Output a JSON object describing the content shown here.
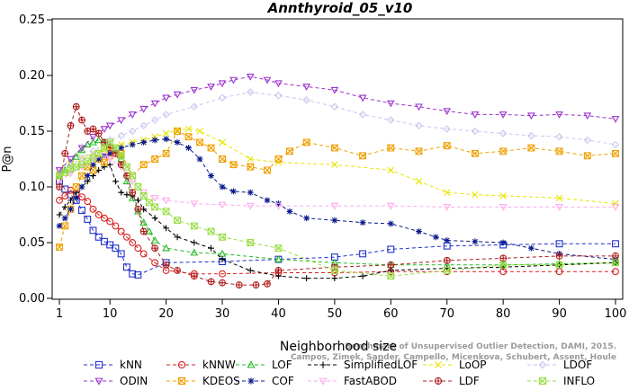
{
  "chart_data": {
    "type": "line",
    "title": "Annthyroid_05_v10",
    "xlabel": "Neighborhood size",
    "ylabel": "P@n",
    "xlim": [
      1,
      100
    ],
    "ylim": [
      0,
      0.25
    ],
    "xticks": [
      1,
      10,
      20,
      30,
      40,
      50,
      60,
      70,
      80,
      90,
      100
    ],
    "yticks": [
      0.0,
      0.05,
      0.1,
      0.15,
      0.2,
      0.25
    ],
    "grid": false,
    "legend_position": "bottom",
    "watermark": [
      "Benchmark of Unsupervised Outlier Detection, DAMI, 2015.",
      "Campos, Zimek, Sander, Campello, Micenkova, Schubert, Assent, Houle"
    ],
    "series": [
      {
        "name": "kNN",
        "color": "#1f2fcc",
        "marker": "square",
        "x": [
          1,
          2,
          3,
          4,
          5,
          6,
          7,
          8,
          9,
          10,
          11,
          12,
          13,
          14,
          15,
          20,
          30,
          40,
          50,
          55,
          60,
          70,
          80,
          90,
          100
        ],
        "y": [
          0.105,
          0.098,
          0.093,
          0.088,
          0.079,
          0.071,
          0.061,
          0.055,
          0.051,
          0.048,
          0.045,
          0.04,
          0.028,
          0.022,
          0.021,
          0.032,
          0.033,
          0.035,
          0.037,
          0.04,
          0.044,
          0.047,
          0.048,
          0.049,
          0.049
        ]
      },
      {
        "name": "kNNW",
        "color": "#d82020",
        "marker": "circle",
        "x": [
          1,
          2,
          3,
          4,
          5,
          6,
          7,
          8,
          9,
          10,
          11,
          12,
          13,
          14,
          15,
          16,
          18,
          20,
          25,
          30,
          40,
          50,
          60,
          70,
          80,
          90,
          100
        ],
        "y": [
          0.088,
          0.092,
          0.097,
          0.094,
          0.091,
          0.087,
          0.08,
          0.075,
          0.072,
          0.069,
          0.065,
          0.06,
          0.055,
          0.05,
          0.045,
          0.04,
          0.032,
          0.025,
          0.022,
          0.022,
          0.023,
          0.023,
          0.024,
          0.024,
          0.024,
          0.024,
          0.024
        ]
      },
      {
        "name": "LOF",
        "color": "#22bb22",
        "marker": "triangle",
        "x": [
          1,
          2,
          3,
          4,
          5,
          6,
          7,
          8,
          9,
          10,
          11,
          12,
          13,
          14,
          15,
          16,
          17,
          18,
          20,
          25,
          30,
          40,
          50,
          60,
          70,
          80,
          90,
          100
        ],
        "y": [
          0.11,
          0.115,
          0.121,
          0.127,
          0.133,
          0.138,
          0.14,
          0.142,
          0.14,
          0.138,
          0.133,
          0.125,
          0.105,
          0.09,
          0.078,
          0.068,
          0.06,
          0.052,
          0.045,
          0.041,
          0.04,
          0.035,
          0.032,
          0.03,
          0.03,
          0.03,
          0.031,
          0.032
        ]
      },
      {
        "name": "SimplifiedLOF",
        "color": "#000000",
        "marker": "plus",
        "x": [
          1,
          2,
          3,
          4,
          5,
          6,
          7,
          8,
          9,
          10,
          11,
          12,
          13,
          14,
          15,
          16,
          18,
          20,
          22,
          25,
          28,
          30,
          35,
          40,
          45,
          50,
          55,
          60,
          70,
          80,
          90,
          100
        ],
        "y": [
          0.075,
          0.082,
          0.088,
          0.095,
          0.1,
          0.105,
          0.11,
          0.115,
          0.118,
          0.12,
          0.105,
          0.095,
          0.093,
          0.092,
          0.088,
          0.08,
          0.072,
          0.063,
          0.055,
          0.05,
          0.045,
          0.035,
          0.025,
          0.02,
          0.018,
          0.018,
          0.02,
          0.025,
          0.027,
          0.028,
          0.03,
          0.032
        ]
      },
      {
        "name": "LoOP",
        "color": "#e6e600",
        "marker": "cross",
        "x": [
          1,
          3,
          5,
          7,
          9,
          10,
          12,
          14,
          16,
          18,
          20,
          22,
          24,
          26,
          30,
          35,
          40,
          50,
          60,
          65,
          70,
          75,
          80,
          90,
          100
        ],
        "y": [
          0.112,
          0.12,
          0.126,
          0.13,
          0.133,
          0.135,
          0.138,
          0.14,
          0.142,
          0.145,
          0.148,
          0.151,
          0.152,
          0.15,
          0.14,
          0.125,
          0.122,
          0.12,
          0.115,
          0.105,
          0.095,
          0.093,
          0.092,
          0.09,
          0.085
        ]
      },
      {
        "name": "LDOF",
        "color": "#c6c6f0",
        "marker": "diamond",
        "x": [
          1,
          3,
          5,
          7,
          9,
          10,
          12,
          14,
          16,
          18,
          20,
          25,
          30,
          35,
          40,
          45,
          50,
          55,
          60,
          65,
          70,
          75,
          80,
          85,
          90,
          95,
          100
        ],
        "y": [
          0.112,
          0.12,
          0.126,
          0.132,
          0.138,
          0.142,
          0.146,
          0.15,
          0.155,
          0.16,
          0.165,
          0.172,
          0.18,
          0.185,
          0.182,
          0.178,
          0.172,
          0.165,
          0.16,
          0.155,
          0.152,
          0.15,
          0.148,
          0.146,
          0.145,
          0.142,
          0.138
        ]
      },
      {
        "name": "ODIN",
        "color": "#9933cc",
        "marker": "triangle-down",
        "x": [
          1,
          3,
          5,
          7,
          9,
          10,
          12,
          14,
          16,
          18,
          20,
          22,
          25,
          28,
          30,
          32,
          35,
          38,
          40,
          45,
          50,
          55,
          60,
          65,
          70,
          75,
          80,
          85,
          90,
          95,
          100
        ],
        "y": [
          0.115,
          0.125,
          0.135,
          0.145,
          0.152,
          0.155,
          0.16,
          0.165,
          0.17,
          0.175,
          0.18,
          0.183,
          0.187,
          0.19,
          0.193,
          0.196,
          0.199,
          0.196,
          0.193,
          0.19,
          0.187,
          0.18,
          0.175,
          0.172,
          0.168,
          0.165,
          0.165,
          0.164,
          0.165,
          0.164,
          0.161
        ]
      },
      {
        "name": "KDEOS",
        "color": "#f0a000",
        "marker": "square-x",
        "x": [
          1,
          2,
          3,
          4,
          5,
          6,
          7,
          8,
          9,
          10,
          12,
          14,
          16,
          18,
          20,
          22,
          24,
          26,
          28,
          30,
          32,
          35,
          38,
          40,
          42,
          45,
          50,
          55,
          60,
          65,
          70,
          75,
          80,
          85,
          90,
          95,
          100
        ],
        "y": [
          0.046,
          0.065,
          0.08,
          0.1,
          0.11,
          0.118,
          0.115,
          0.125,
          0.122,
          0.128,
          0.13,
          0.11,
          0.12,
          0.125,
          0.13,
          0.15,
          0.145,
          0.14,
          0.135,
          0.125,
          0.12,
          0.118,
          0.115,
          0.125,
          0.132,
          0.14,
          0.135,
          0.128,
          0.135,
          0.132,
          0.137,
          0.13,
          0.132,
          0.135,
          0.132,
          0.128,
          0.13
        ]
      },
      {
        "name": "COF",
        "color": "#0a1a8c",
        "marker": "star",
        "x": [
          1,
          2,
          3,
          4,
          5,
          6,
          7,
          8,
          9,
          10,
          12,
          14,
          16,
          18,
          20,
          22,
          24,
          26,
          28,
          30,
          32,
          35,
          38,
          40,
          42,
          45,
          50,
          55,
          60,
          65,
          68,
          70,
          75,
          80,
          85,
          90,
          100
        ],
        "y": [
          0.065,
          0.072,
          0.08,
          0.09,
          0.1,
          0.11,
          0.12,
          0.125,
          0.128,
          0.13,
          0.135,
          0.138,
          0.14,
          0.142,
          0.143,
          0.14,
          0.135,
          0.125,
          0.11,
          0.1,
          0.096,
          0.095,
          0.088,
          0.085,
          0.078,
          0.072,
          0.07,
          0.068,
          0.067,
          0.06,
          0.055,
          0.052,
          0.051,
          0.05,
          0.045,
          0.04,
          0.035
        ]
      },
      {
        "name": "FastABOD",
        "color": "#ffaaee",
        "marker": "triangle-down",
        "x": [
          1,
          3,
          5,
          7,
          9,
          10,
          12,
          14,
          16,
          18,
          20,
          25,
          30,
          35,
          40,
          50,
          60,
          70,
          80,
          90,
          100
        ],
        "y": [
          0.105,
          0.112,
          0.118,
          0.125,
          0.128,
          0.125,
          0.118,
          0.105,
          0.095,
          0.09,
          0.088,
          0.085,
          0.084,
          0.083,
          0.083,
          0.083,
          0.083,
          0.082,
          0.082,
          0.082,
          0.082
        ]
      },
      {
        "name": "LDF",
        "color": "#b02020",
        "marker": "circle-plus",
        "x": [
          1,
          2,
          3,
          4,
          5,
          6,
          7,
          8,
          9,
          10,
          11,
          12,
          13,
          14,
          15,
          16,
          18,
          20,
          22,
          25,
          28,
          30,
          33,
          36,
          38,
          40,
          50,
          60,
          70,
          80,
          90,
          100
        ],
        "y": [
          0.1,
          0.13,
          0.155,
          0.172,
          0.16,
          0.15,
          0.152,
          0.148,
          0.14,
          0.135,
          0.13,
          0.12,
          0.11,
          0.095,
          0.08,
          0.06,
          0.045,
          0.03,
          0.025,
          0.02,
          0.015,
          0.014,
          0.012,
          0.012,
          0.013,
          0.025,
          0.028,
          0.03,
          0.034,
          0.036,
          0.038,
          0.038
        ]
      },
      {
        "name": "INFLO",
        "color": "#99dd44",
        "marker": "square-x",
        "x": [
          1,
          2,
          3,
          4,
          5,
          6,
          7,
          8,
          9,
          10,
          11,
          12,
          13,
          14,
          15,
          16,
          17,
          18,
          20,
          22,
          25,
          28,
          30,
          35,
          40,
          50,
          60,
          70,
          80,
          90,
          100
        ],
        "y": [
          0.11,
          0.113,
          0.116,
          0.118,
          0.12,
          0.123,
          0.126,
          0.13,
          0.135,
          0.14,
          0.135,
          0.128,
          0.118,
          0.11,
          0.1,
          0.092,
          0.086,
          0.082,
          0.078,
          0.07,
          0.065,
          0.06,
          0.055,
          0.05,
          0.045,
          0.025,
          0.02,
          0.025,
          0.03,
          0.03,
          0.032
        ]
      }
    ]
  }
}
